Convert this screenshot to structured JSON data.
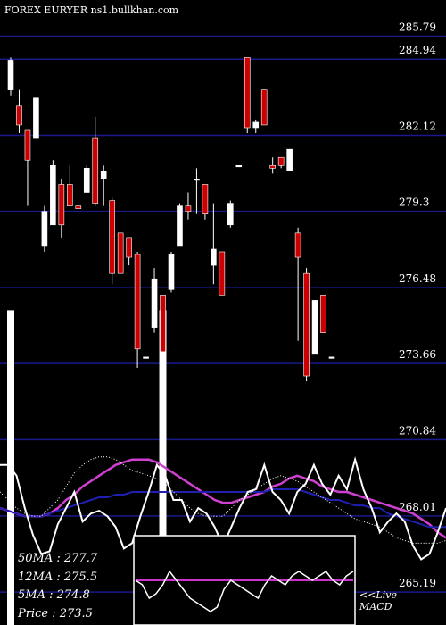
{
  "header": {
    "title": "FOREX  EURYER ns1.bullkhan.com"
  },
  "chart_data": {
    "type": "candlestick",
    "title": "FOREX  EURYER ns1.bullkhan.com",
    "y_ticks": [
      "285.79",
      "284.94",
      "282.12",
      "279.3",
      "276.48",
      "273.66",
      "270.84",
      "268.01",
      "265.19"
    ],
    "ylim": [
      264.3,
      286.8
    ],
    "grid": true,
    "colors": {
      "up": "#ffffff",
      "down": "#cc0000",
      "grid": "#1a1a8c",
      "ma50": "#2020b0",
      "ma12": "#d040d0",
      "ma5": "#ffffff",
      "macd_line": "#ffffff",
      "macd_signal": "#cc33cc"
    },
    "candles": [
      {
        "o": 283.8,
        "h": 285.0,
        "l": 283.6,
        "c": 284.9
      },
      {
        "o": 283.2,
        "h": 283.8,
        "l": 282.2,
        "c": 282.5
      },
      {
        "o": 282.3,
        "h": 282.3,
        "l": 279.5,
        "c": 281.2
      },
      {
        "o": 282.0,
        "h": 283.5,
        "l": 282.0,
        "c": 283.5
      },
      {
        "o": 278.0,
        "h": 279.5,
        "l": 277.8,
        "c": 279.3
      },
      {
        "o": 278.8,
        "h": 281.2,
        "l": 278.8,
        "c": 281.0
      },
      {
        "o": 280.3,
        "h": 280.5,
        "l": 278.3,
        "c": 278.8
      },
      {
        "o": 280.3,
        "h": 281.0,
        "l": 279.5,
        "c": 279.5
      },
      {
        "o": 279.5,
        "h": 279.5,
        "l": 279.5,
        "c": 279.4
      },
      {
        "o": 280.0,
        "h": 281.0,
        "l": 280.0,
        "c": 280.9
      },
      {
        "o": 282.0,
        "h": 282.8,
        "l": 279.5,
        "c": 279.6
      },
      {
        "o": 280.5,
        "h": 281.0,
        "l": 279.5,
        "c": 280.8
      },
      {
        "o": 279.7,
        "h": 279.8,
        "l": 276.6,
        "c": 277.0
      },
      {
        "o": 278.5,
        "h": 278.5,
        "l": 277.0,
        "c": 277.0
      },
      {
        "o": 278.3,
        "h": 278.3,
        "l": 277.3,
        "c": 277.6
      },
      {
        "o": 277.7,
        "h": 277.8,
        "l": 273.5,
        "c": 274.2
      },
      {
        "o": 273.9,
        "h": 273.9,
        "l": 273.9,
        "c": 273.9
      },
      {
        "o": 275.0,
        "h": 277.2,
        "l": 274.8,
        "c": 276.8
      },
      {
        "o": 276.2,
        "h": 276.2,
        "l": 273.5,
        "c": 274.1
      },
      {
        "o": 276.4,
        "h": 277.8,
        "l": 276.3,
        "c": 277.7
      },
      {
        "o": 278.0,
        "h": 279.6,
        "l": 278.0,
        "c": 279.5
      },
      {
        "o": 279.5,
        "h": 280.0,
        "l": 279.0,
        "c": 279.3
      },
      {
        "o": 280.5,
        "h": 280.9,
        "l": 279.2,
        "c": 280.5
      },
      {
        "o": 280.3,
        "h": 280.3,
        "l": 279.0,
        "c": 279.2
      },
      {
        "o": 277.3,
        "h": 279.6,
        "l": 276.6,
        "c": 277.9
      },
      {
        "o": 277.8,
        "h": 277.8,
        "l": 276.2,
        "c": 276.2
      },
      {
        "o": 278.8,
        "h": 279.7,
        "l": 278.7,
        "c": 279.6
      },
      {
        "o": 281.0,
        "h": 281.0,
        "l": 281.0,
        "c": 281.0
      },
      {
        "o": 285.0,
        "h": 285.0,
        "l": 282.2,
        "c": 282.4
      },
      {
        "o": 282.4,
        "h": 282.7,
        "l": 282.2,
        "c": 282.6
      },
      {
        "o": 283.8,
        "h": 283.8,
        "l": 282.5,
        "c": 282.5
      },
      {
        "o": 281.0,
        "h": 281.3,
        "l": 280.7,
        "c": 280.9
      },
      {
        "o": 281.3,
        "h": 281.3,
        "l": 280.9,
        "c": 281.0
      },
      {
        "o": 280.8,
        "h": 281.6,
        "l": 280.8,
        "c": 281.6
      },
      {
        "o": 278.5,
        "h": 278.7,
        "l": 274.5,
        "c": 277.6
      },
      {
        "o": 277.0,
        "h": 277.2,
        "l": 273.0,
        "c": 273.2
      },
      {
        "o": 274.0,
        "h": 276.0,
        "l": 274.0,
        "c": 276.0
      },
      {
        "o": 276.2,
        "h": 276.2,
        "l": 274.8,
        "c": 274.8
      },
      {
        "o": 273.9,
        "h": 273.9,
        "l": 273.9,
        "c": 273.9
      }
    ],
    "volume": [
      0.86,
      0.05,
      0.05,
      0.05,
      0.05,
      0.05,
      0.05,
      0.05,
      0.05,
      0.05,
      0.05,
      0.05,
      0.05,
      0.05,
      0.05,
      0.05,
      0.05,
      0.05,
      0.86,
      0.05,
      0.05,
      0.05,
      0.05,
      0.05,
      0.05,
      0.05,
      0.05,
      0.05,
      0.05,
      0.05,
      0.05,
      0.05,
      0.05,
      0.05,
      0.05,
      0.05,
      0.05,
      0.05,
      0.05
    ],
    "ma_overlay": {
      "price_line": [
        269.9,
        269.9,
        269.5,
        268.3,
        267.3,
        266.6,
        266.7,
        267.7,
        268.3,
        268.9,
        267.8,
        268.1,
        268.2,
        268.0,
        267.6,
        266.8,
        267.0,
        268.0,
        268.9,
        269.9,
        269.5,
        268.6,
        268.6,
        267.8,
        268.3,
        268.1,
        267.6,
        266.9,
        267.6,
        268.3,
        268.9,
        269.0,
        269.9,
        268.9,
        268.6,
        268.1,
        268.9,
        269.2,
        269.9,
        269.2,
        268.8,
        269.5,
        269.0,
        270.1,
        269.0,
        268.3,
        267.4,
        267.8,
        268.1,
        267.8,
        266.9,
        266.4,
        266.6,
        267.4,
        268.3
      ],
      "ma_fast": [
        268.3,
        268.2,
        268.1,
        268.0,
        268.0,
        268.0,
        268.1,
        268.2,
        268.3,
        268.4,
        268.5,
        268.6,
        268.7,
        268.7,
        268.8,
        268.8,
        268.9,
        268.9,
        268.9,
        268.9,
        268.9,
        268.9,
        268.9,
        268.9,
        268.9,
        268.9,
        268.9,
        268.9,
        268.9,
        268.9,
        268.9,
        268.9,
        268.9,
        269.0,
        269.0,
        269.0,
        269.0,
        268.9,
        268.8,
        268.7,
        268.6,
        268.6,
        268.5,
        268.4,
        268.4,
        268.3,
        268.3,
        268.1,
        268.0,
        267.9,
        267.8,
        267.7,
        267.6,
        267.6,
        267.6
      ],
      "ma_slow": [
        268.3,
        268.2,
        268.1,
        268.0,
        268.0,
        268.0,
        268.1,
        268.3,
        268.6,
        268.8,
        269.1,
        269.3,
        269.5,
        269.7,
        269.9,
        270.0,
        270.1,
        270.1,
        270.1,
        270.0,
        269.8,
        269.6,
        269.4,
        269.2,
        269.0,
        268.8,
        268.6,
        268.5,
        268.5,
        268.6,
        268.7,
        268.8,
        268.9,
        269.1,
        269.2,
        269.4,
        269.5,
        269.4,
        269.3,
        269.1,
        269.0,
        268.9,
        268.9,
        268.8,
        268.7,
        268.6,
        268.5,
        268.4,
        268.3,
        268.2,
        268.1,
        267.9,
        267.7,
        267.4,
        267.2
      ],
      "ma_dotted": [
        268.9,
        268.6,
        268.3,
        268.1,
        268.0,
        268.0,
        268.3,
        268.6,
        269.1,
        269.6,
        269.9,
        270.1,
        270.2,
        270.2,
        270.1,
        269.9,
        269.7,
        269.6,
        269.5,
        269.4,
        269.2,
        268.9,
        268.6,
        268.3,
        268.1,
        268.0,
        268.0,
        268.0,
        268.3,
        268.6,
        268.8,
        269.0,
        269.2,
        269.4,
        269.5,
        269.4,
        269.3,
        269.1,
        268.9,
        268.7,
        268.5,
        268.3,
        268.1,
        267.9,
        267.8,
        267.7,
        267.6,
        267.4,
        267.2,
        267.1,
        267.0,
        267.0,
        267.0,
        267.0,
        267.1
      ]
    },
    "macd": {
      "line": [
        0.5,
        0.45,
        0.3,
        0.35,
        0.45,
        0.6,
        0.5,
        0.4,
        0.3,
        0.25,
        0.2,
        0.15,
        0.2,
        0.4,
        0.5,
        0.45,
        0.4,
        0.35,
        0.3,
        0.45,
        0.55,
        0.5,
        0.45,
        0.55,
        0.6,
        0.55,
        0.5,
        0.55,
        0.6,
        0.5,
        0.45,
        0.55,
        0.6
      ],
      "signal": 0.5
    }
  },
  "legend": {
    "ma50": "50MA : 277.7",
    "ma12": "12MA : 275.5",
    "ma5": "5MA  : 274.8",
    "price": "Price   : 273.5",
    "live": "<<Live",
    "macd": "MACD"
  }
}
